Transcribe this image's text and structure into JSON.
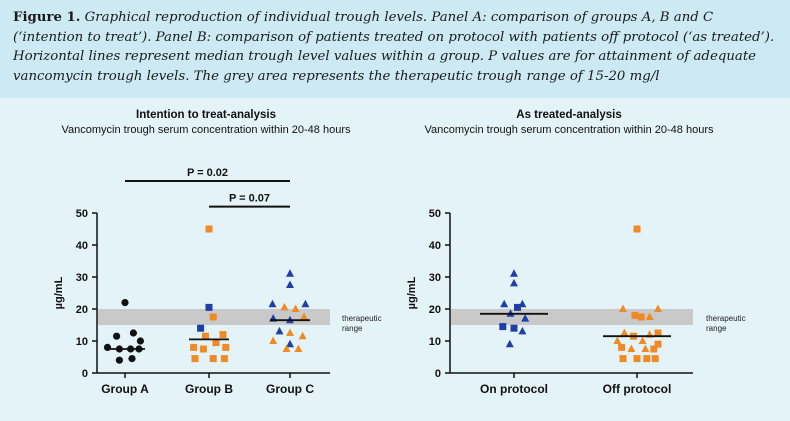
{
  "caption": {
    "label": "Figure 1.",
    "text": " Graphical reproduction of individual trough levels. Panel A: comparison of groups A, B and C (‘intention to treat’). Panel B: comparison of patients treated on protocol with patients off protocol (‘as treated’). Horizontal lines represent median trough level values within a group. P values are for attainment of adequate vancomycin trough levels. The grey area represents the therapeutic trough range of 15-20 mg/l"
  },
  "colors": {
    "black": "#111111",
    "blue": "#1f3ea8",
    "orange": "#f08a24",
    "band": "#c9c9c9"
  },
  "chart_data": [
    {
      "type": "scatter",
      "title": "Intention to treat-analysis",
      "subtitle": "Vancomycin trough serum concentration within 20-48 hours",
      "ylabel": "µg/mL",
      "ylim": [
        0,
        50
      ],
      "yticks": [
        0,
        10,
        20,
        30,
        40,
        50
      ],
      "band": {
        "from": 15,
        "to": 20,
        "label_line1": "therapeutic",
        "label_line2": "range"
      },
      "categories": [
        "Group A",
        "Group B",
        "Group C"
      ],
      "series": [
        {
          "category": "Group A",
          "median": 7.5,
          "points": [
            {
              "x": 0.0,
              "y": 22,
              "shape": "circle",
              "color": "black"
            },
            {
              "x": -0.12,
              "y": 11.5,
              "shape": "circle",
              "color": "black"
            },
            {
              "x": 0.12,
              "y": 12.5,
              "shape": "circle",
              "color": "black"
            },
            {
              "x": 0.22,
              "y": 10,
              "shape": "circle",
              "color": "black"
            },
            {
              "x": -0.25,
              "y": 8,
              "shape": "circle",
              "color": "black"
            },
            {
              "x": -0.08,
              "y": 7.5,
              "shape": "circle",
              "color": "black"
            },
            {
              "x": 0.08,
              "y": 7.5,
              "shape": "circle",
              "color": "black"
            },
            {
              "x": 0.2,
              "y": 7.5,
              "shape": "circle",
              "color": "black"
            },
            {
              "x": -0.08,
              "y": 4,
              "shape": "circle",
              "color": "black"
            },
            {
              "x": 0.1,
              "y": 4.5,
              "shape": "circle",
              "color": "black"
            }
          ]
        },
        {
          "category": "Group B",
          "median": 10.5,
          "points": [
            {
              "x": 0.0,
              "y": 45,
              "shape": "square",
              "color": "orange"
            },
            {
              "x": 0.0,
              "y": 20.5,
              "shape": "square",
              "color": "blue"
            },
            {
              "x": 0.06,
              "y": 17.5,
              "shape": "square",
              "color": "orange"
            },
            {
              "x": -0.12,
              "y": 14,
              "shape": "square",
              "color": "blue"
            },
            {
              "x": 0.2,
              "y": 12,
              "shape": "square",
              "color": "orange"
            },
            {
              "x": -0.05,
              "y": 11.5,
              "shape": "square",
              "color": "orange"
            },
            {
              "x": -0.22,
              "y": 8,
              "shape": "square",
              "color": "orange"
            },
            {
              "x": 0.1,
              "y": 9.5,
              "shape": "square",
              "color": "orange"
            },
            {
              "x": 0.24,
              "y": 8,
              "shape": "square",
              "color": "orange"
            },
            {
              "x": -0.08,
              "y": 7.5,
              "shape": "square",
              "color": "orange"
            },
            {
              "x": -0.2,
              "y": 4.5,
              "shape": "square",
              "color": "orange"
            },
            {
              "x": 0.06,
              "y": 4.5,
              "shape": "square",
              "color": "orange"
            },
            {
              "x": 0.22,
              "y": 4.5,
              "shape": "square",
              "color": "orange"
            }
          ]
        },
        {
          "category": "Group C",
          "median": 16.5,
          "points": [
            {
              "x": 0.0,
              "y": 31,
              "shape": "triangle",
              "color": "blue"
            },
            {
              "x": 0.0,
              "y": 27.5,
              "shape": "triangle",
              "color": "blue"
            },
            {
              "x": -0.25,
              "y": 21.5,
              "shape": "triangle",
              "color": "blue"
            },
            {
              "x": 0.22,
              "y": 21.5,
              "shape": "triangle",
              "color": "blue"
            },
            {
              "x": -0.08,
              "y": 20.5,
              "shape": "triangle",
              "color": "orange"
            },
            {
              "x": 0.08,
              "y": 20,
              "shape": "triangle",
              "color": "orange"
            },
            {
              "x": -0.24,
              "y": 17,
              "shape": "triangle",
              "color": "blue"
            },
            {
              "x": 0.2,
              "y": 17.5,
              "shape": "triangle",
              "color": "orange"
            },
            {
              "x": 0.0,
              "y": 16.5,
              "shape": "triangle",
              "color": "blue"
            },
            {
              "x": -0.15,
              "y": 13,
              "shape": "triangle",
              "color": "blue"
            },
            {
              "x": 0.0,
              "y": 12.5,
              "shape": "triangle",
              "color": "orange"
            },
            {
              "x": 0.18,
              "y": 11.5,
              "shape": "triangle",
              "color": "orange"
            },
            {
              "x": -0.24,
              "y": 10,
              "shape": "triangle",
              "color": "orange"
            },
            {
              "x": 0.0,
              "y": 9,
              "shape": "triangle",
              "color": "blue"
            },
            {
              "x": -0.05,
              "y": 7.5,
              "shape": "triangle",
              "color": "orange"
            },
            {
              "x": 0.12,
              "y": 7.5,
              "shape": "triangle",
              "color": "orange"
            }
          ]
        }
      ],
      "comparisons": [
        {
          "from": "Group A",
          "to": "Group C",
          "label": "P = 0.02",
          "y": 60
        },
        {
          "from": "Group B",
          "to": "Group C",
          "label": "P = 0.07",
          "y": 52
        }
      ]
    },
    {
      "type": "scatter",
      "title": "As treated-analysis",
      "subtitle": "Vancomycin trough serum concentration within 20-48 hours",
      "ylabel": "µg/mL",
      "ylim": [
        0,
        50
      ],
      "yticks": [
        0,
        10,
        20,
        30,
        40,
        50
      ],
      "band": {
        "from": 15,
        "to": 20,
        "label_line1": "therapeutic",
        "label_line2": "range"
      },
      "categories": [
        "On protocol",
        "Off protocol"
      ],
      "series": [
        {
          "category": "On protocol",
          "median": 18.5,
          "points": [
            {
              "x": 0.0,
              "y": 31,
              "shape": "triangle",
              "color": "blue"
            },
            {
              "x": 0.0,
              "y": 28,
              "shape": "triangle",
              "color": "blue"
            },
            {
              "x": -0.14,
              "y": 21.5,
              "shape": "triangle",
              "color": "blue"
            },
            {
              "x": 0.12,
              "y": 21.5,
              "shape": "triangle",
              "color": "blue"
            },
            {
              "x": 0.05,
              "y": 20.5,
              "shape": "square",
              "color": "blue"
            },
            {
              "x": -0.05,
              "y": 18.5,
              "shape": "triangle",
              "color": "blue"
            },
            {
              "x": 0.16,
              "y": 17,
              "shape": "triangle",
              "color": "blue"
            },
            {
              "x": -0.16,
              "y": 14.5,
              "shape": "square",
              "color": "blue"
            },
            {
              "x": 0.0,
              "y": 14,
              "shape": "square",
              "color": "blue"
            },
            {
              "x": 0.12,
              "y": 13,
              "shape": "triangle",
              "color": "blue"
            },
            {
              "x": -0.06,
              "y": 9,
              "shape": "triangle",
              "color": "blue"
            }
          ]
        },
        {
          "category": "Off protocol",
          "median": 11.5,
          "points": [
            {
              "x": 0.0,
              "y": 45,
              "shape": "square",
              "color": "orange"
            },
            {
              "x": -0.2,
              "y": 20,
              "shape": "triangle",
              "color": "orange"
            },
            {
              "x": 0.3,
              "y": 20,
              "shape": "triangle",
              "color": "orange"
            },
            {
              "x": -0.03,
              "y": 18,
              "shape": "square",
              "color": "orange"
            },
            {
              "x": 0.06,
              "y": 17.5,
              "shape": "square",
              "color": "orange"
            },
            {
              "x": 0.18,
              "y": 17.5,
              "shape": "triangle",
              "color": "orange"
            },
            {
              "x": -0.18,
              "y": 12.5,
              "shape": "triangle",
              "color": "orange"
            },
            {
              "x": 0.3,
              "y": 12.5,
              "shape": "square",
              "color": "orange"
            },
            {
              "x": -0.05,
              "y": 11.5,
              "shape": "square",
              "color": "orange"
            },
            {
              "x": 0.18,
              "y": 12,
              "shape": "triangle",
              "color": "orange"
            },
            {
              "x": -0.28,
              "y": 10,
              "shape": "triangle",
              "color": "orange"
            },
            {
              "x": 0.08,
              "y": 10,
              "shape": "triangle",
              "color": "orange"
            },
            {
              "x": 0.3,
              "y": 9,
              "shape": "square",
              "color": "orange"
            },
            {
              "x": -0.22,
              "y": 8,
              "shape": "square",
              "color": "orange"
            },
            {
              "x": -0.08,
              "y": 7.5,
              "shape": "triangle",
              "color": "orange"
            },
            {
              "x": 0.12,
              "y": 7.5,
              "shape": "triangle",
              "color": "orange"
            },
            {
              "x": 0.24,
              "y": 7.5,
              "shape": "square",
              "color": "orange"
            },
            {
              "x": -0.2,
              "y": 4.5,
              "shape": "square",
              "color": "orange"
            },
            {
              "x": 0.0,
              "y": 4.5,
              "shape": "square",
              "color": "orange"
            },
            {
              "x": 0.14,
              "y": 4.5,
              "shape": "square",
              "color": "orange"
            },
            {
              "x": 0.26,
              "y": 4.5,
              "shape": "square",
              "color": "orange"
            }
          ]
        }
      ],
      "comparisons": []
    }
  ]
}
